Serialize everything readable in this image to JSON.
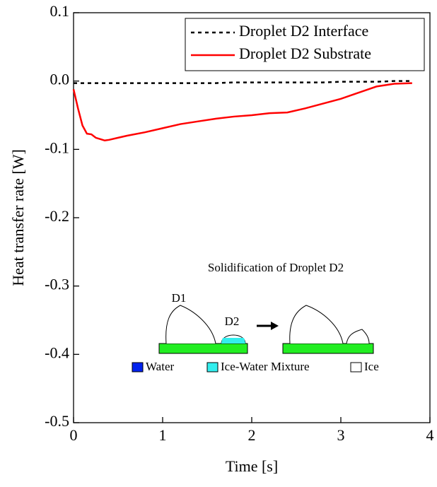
{
  "chart_data": {
    "type": "line",
    "xlabel": "Time [s]",
    "ylabel": "Heat transfer rate [W]",
    "x": [
      0,
      0.05,
      0.1,
      0.15,
      0.2,
      0.25,
      0.3,
      0.35,
      0.4,
      0.5,
      0.6,
      0.8,
      1.0,
      1.2,
      1.4,
      1.6,
      1.8,
      2.0,
      2.2,
      2.4,
      2.6,
      2.8,
      3.0,
      3.2,
      3.4,
      3.6,
      3.8
    ],
    "series": [
      {
        "name": "Droplet D2 Interface",
        "color": "#000000",
        "dash": true,
        "values": [
          -0.003,
          -0.003,
          -0.003,
          -0.003,
          -0.003,
          -0.003,
          -0.003,
          -0.003,
          -0.003,
          -0.003,
          -0.003,
          -0.003,
          -0.003,
          -0.003,
          -0.003,
          -0.003,
          -0.002,
          -0.002,
          -0.002,
          -0.002,
          -0.002,
          -0.002,
          -0.001,
          -0.001,
          -0.001,
          0,
          0
        ]
      },
      {
        "name": "Droplet D2 Substrate",
        "color": "#ff0000",
        "dash": false,
        "values": [
          -0.012,
          -0.04,
          -0.065,
          -0.077,
          -0.078,
          -0.083,
          -0.085,
          -0.087,
          -0.086,
          -0.083,
          -0.08,
          -0.075,
          -0.069,
          -0.063,
          -0.059,
          -0.055,
          -0.052,
          -0.05,
          -0.047,
          -0.046,
          -0.04,
          -0.033,
          -0.026,
          -0.017,
          -0.008,
          -0.004,
          -0.003
        ]
      }
    ],
    "xlim": [
      0,
      4
    ],
    "xticks": [
      0,
      1,
      2,
      3,
      4
    ],
    "ylim": [
      -0.5,
      0.1
    ],
    "yticks": [
      -0.5,
      -0.4,
      -0.3,
      -0.2,
      -0.1,
      {
        "value": 0,
        "label": "0.0"
      },
      0.1
    ],
    "legend": "upper right",
    "inset": {
      "title": "Solidification of Droplet D2",
      "droplet_1": "D1",
      "droplet_2": "D2",
      "legend": [
        "Water",
        "Ice-Water Mixture",
        "Ice"
      ]
    }
  }
}
